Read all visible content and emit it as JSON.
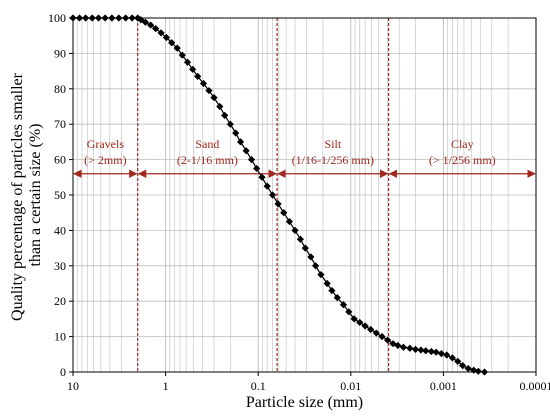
{
  "chart_data": {
    "type": "line",
    "xlabel": "Particle size (mm)",
    "ylabel_lines": [
      "Quality percentage of particles smaller",
      "than a certain size (%)"
    ],
    "x_scale": "log-reversed",
    "xlim": [
      10,
      0.0001
    ],
    "ylim": [
      0,
      100
    ],
    "x_ticks": [
      10,
      1,
      0.1,
      0.01,
      0.001,
      0.0001
    ],
    "x_tick_labels": [
      "10",
      "1",
      "0.1",
      "0.01",
      "0.001",
      "0.0001"
    ],
    "y_ticks": [
      0,
      10,
      20,
      30,
      40,
      50,
      60,
      70,
      80,
      90,
      100
    ],
    "y_tick_labels": [
      "0",
      "10",
      "20",
      "30",
      "40",
      "50",
      "60",
      "70",
      "80",
      "90",
      "100"
    ],
    "grid": true,
    "series": [
      {
        "marker": "diamond",
        "color": "#000000",
        "x": [
          10,
          8.5,
          7.3,
          6.2,
          5.3,
          4.5,
          3.8,
          3.2,
          2.7,
          2.3,
          2.0,
          1.85,
          1.65,
          1.45,
          1.28,
          1.12,
          0.98,
          0.86,
          0.75,
          0.66,
          0.58,
          0.51,
          0.45,
          0.39,
          0.34,
          0.3,
          0.26,
          0.23,
          0.2,
          0.175,
          0.155,
          0.135,
          0.118,
          0.104,
          0.091,
          0.08,
          0.07,
          0.061,
          0.053,
          0.046,
          0.04,
          0.035,
          0.031,
          0.027,
          0.024,
          0.021,
          0.018,
          0.016,
          0.014,
          0.012,
          0.0105,
          0.0092,
          0.008,
          0.007,
          0.0061,
          0.0053,
          0.0046,
          0.004,
          0.0035,
          0.0031,
          0.0027,
          0.0023,
          0.002,
          0.00175,
          0.00155,
          0.00135,
          0.0012,
          0.00105,
          0.00092,
          0.0008,
          0.0007,
          0.00062,
          0.00054,
          0.00047,
          0.00042,
          0.00036
        ],
        "y": [
          100,
          100,
          100,
          100,
          100,
          100,
          100,
          100,
          100,
          100,
          100,
          99.5,
          98.8,
          98,
          97,
          95.8,
          94.5,
          93,
          91.5,
          89.5,
          87.5,
          85.5,
          83.5,
          81.5,
          79.5,
          77.5,
          75,
          72.5,
          70,
          67.5,
          65,
          62.5,
          60,
          57.5,
          55,
          52.5,
          50,
          47.5,
          45,
          42.5,
          40,
          37.5,
          35,
          32.5,
          30,
          27.5,
          25,
          23,
          21,
          19,
          17,
          15,
          14,
          13,
          12,
          11,
          10,
          9,
          8,
          7.5,
          7,
          6.7,
          6.4,
          6.2,
          6,
          5.8,
          5.6,
          5.2,
          4.8,
          4,
          3,
          1.8,
          1,
          0.5,
          0.2,
          0
        ]
      }
    ],
    "boundaries": [
      2,
      0.0625,
      0.00390625
    ],
    "regions": [
      {
        "name": "Gravels",
        "range_label": "(> 2mm)",
        "from": 10,
        "to": 2
      },
      {
        "name": "Sand",
        "range_label": "(2-1/16 mm)",
        "from": 2,
        "to": 0.0625
      },
      {
        "name": "Silt",
        "range_label": "(1/16-1/256 mm)",
        "from": 0.0625,
        "to": 0.00390625
      },
      {
        "name": "Clay",
        "range_label": "(> 1/256 mm)",
        "from": 0.00390625,
        "to": 0.0001
      }
    ],
    "region_arrow_y": 56,
    "colors": {
      "boundary": "#a0281e",
      "series": "#000000",
      "grid": "#bdbdbd"
    }
  }
}
